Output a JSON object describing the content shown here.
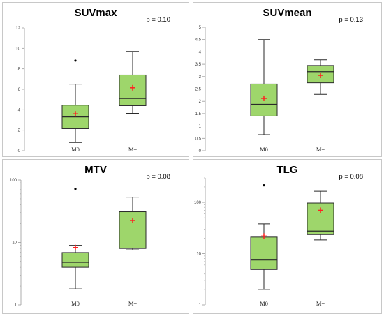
{
  "chart_data": [
    {
      "type": "box",
      "title": "SUVmax",
      "p_value": "p = 0.10",
      "scale": "linear",
      "ylim": [
        0,
        12
      ],
      "yticks": [
        0,
        2,
        4,
        6,
        8,
        10,
        12
      ],
      "ytick_labels": [
        "0",
        "2",
        "4",
        "6",
        "8",
        "10",
        "12"
      ],
      "categories": [
        "M0",
        "M+"
      ],
      "boxes": [
        {
          "min": 0.8,
          "q1": 2.15,
          "median": 3.3,
          "q3": 4.45,
          "max": 6.5,
          "mean": 3.6,
          "outliers": [
            8.8
          ]
        },
        {
          "min": 3.65,
          "q1": 4.4,
          "median": 5.1,
          "q3": 7.4,
          "max": 9.7,
          "mean": 6.15,
          "outliers": []
        }
      ]
    },
    {
      "type": "box",
      "title": "SUVmean",
      "p_value": "p = 0.13",
      "scale": "linear",
      "ylim": [
        0,
        5
      ],
      "yticks": [
        0,
        0.5,
        1,
        1.5,
        2,
        2.5,
        3,
        3.5,
        4,
        4.5,
        5
      ],
      "ytick_labels": [
        "0",
        "0.5",
        "1",
        "1.5",
        "2",
        "2.5",
        "3",
        "3.5",
        "4",
        "4.5",
        "5"
      ],
      "categories": [
        "M0",
        "M+"
      ],
      "boxes": [
        {
          "min": 0.65,
          "q1": 1.4,
          "median": 1.88,
          "q3": 2.7,
          "max": 4.5,
          "mean": 2.12,
          "outliers": []
        },
        {
          "min": 2.28,
          "q1": 2.75,
          "median": 3.2,
          "q3": 3.45,
          "max": 3.68,
          "mean": 3.05,
          "outliers": []
        }
      ]
    },
    {
      "type": "box",
      "title": "MTV",
      "p_value": "p = 0.08",
      "scale": "log",
      "ylim": [
        1,
        100
      ],
      "yticks": [
        1,
        10,
        100
      ],
      "ytick_labels": [
        "1",
        "10",
        "100"
      ],
      "categories": [
        "M0",
        "M+"
      ],
      "boxes": [
        {
          "min": 1.8,
          "q1": 4.0,
          "median": 4.8,
          "q3": 6.9,
          "max": 9.0,
          "mean": 8.3,
          "outliers": [
            72
          ]
        },
        {
          "min": 7.6,
          "q1": 8.0,
          "median": 8.1,
          "q3": 31,
          "max": 53,
          "mean": 22.5,
          "outliers": []
        }
      ]
    },
    {
      "type": "box",
      "title": "TLG",
      "p_value": "p = 0.08",
      "scale": "log",
      "ylim": [
        1,
        300
      ],
      "yticks": [
        1,
        10,
        100
      ],
      "ytick_labels": [
        "1",
        "10",
        "100"
      ],
      "categories": [
        "M0",
        "M+"
      ],
      "boxes": [
        {
          "min": 2.0,
          "q1": 4.9,
          "median": 7.5,
          "q3": 21,
          "max": 38,
          "mean": 22,
          "outliers": [
            215
          ]
        },
        {
          "min": 18.5,
          "q1": 23.5,
          "median": 27.5,
          "q3": 97,
          "max": 165,
          "mean": 70,
          "outliers": []
        }
      ]
    }
  ],
  "colors": {
    "box_fill": "#9ed66b",
    "box_stroke": "#2a2a2a",
    "mean_marker": "#ff2020",
    "outlier": "#000000",
    "axis": "#9a9a9a"
  }
}
